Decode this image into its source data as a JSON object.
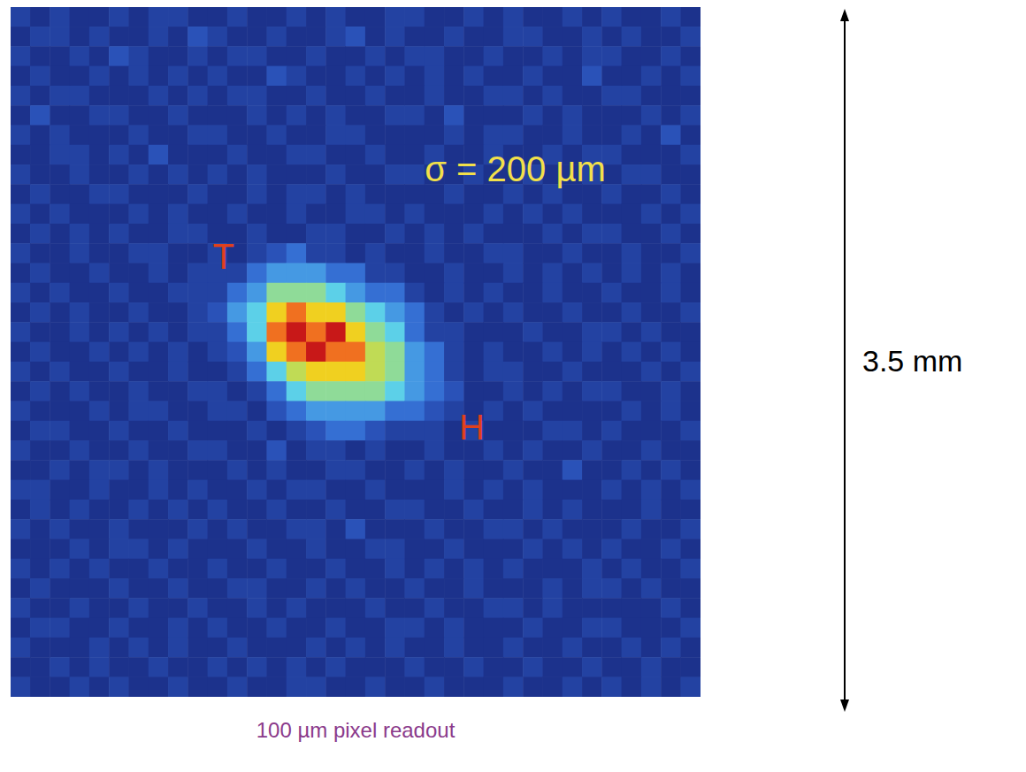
{
  "chart_data": {
    "type": "heatmap",
    "xlabel": "100 µm pixel readout",
    "extent_label": "3.5 mm",
    "tick_labels": false,
    "xlim": [
      0,
      35
    ],
    "ylim": [
      0,
      35
    ],
    "zlim": [
      0,
      10
    ],
    "annotations": [
      {
        "text": "σ = 200 µm",
        "x": 25.6,
        "y": 8.2,
        "color": "#f2e04a"
      },
      {
        "text": "T",
        "x": 10.8,
        "y": 12.65,
        "color": "#e0401c"
      },
      {
        "text": "H",
        "x": 23.4,
        "y": 21.3,
        "color": "#e0401c"
      }
    ],
    "cells": [
      [
        1,
        0,
        1,
        0,
        0,
        1,
        0,
        1,
        1,
        0,
        0,
        1,
        0,
        0,
        1,
        0,
        1,
        0,
        0,
        1,
        1,
        0,
        0,
        1,
        0,
        1,
        0,
        0,
        1,
        0,
        1,
        0,
        0,
        1,
        0
      ],
      [
        0,
        1,
        1,
        0,
        1,
        0,
        0,
        1,
        0,
        2,
        1,
        0,
        0,
        1,
        0,
        0,
        1,
        2,
        0,
        1,
        0,
        0,
        1,
        0,
        0,
        1,
        1,
        0,
        0,
        1,
        0,
        1,
        0,
        0,
        1
      ],
      [
        1,
        0,
        0,
        1,
        0,
        2,
        1,
        0,
        0,
        1,
        0,
        1,
        1,
        0,
        0,
        1,
        0,
        0,
        1,
        0,
        1,
        1,
        0,
        0,
        1,
        0,
        0,
        1,
        0,
        1,
        1,
        0,
        0,
        1,
        0
      ],
      [
        0,
        1,
        0,
        0,
        1,
        0,
        1,
        0,
        1,
        0,
        1,
        0,
        0,
        2,
        1,
        0,
        0,
        1,
        0,
        1,
        0,
        1,
        0,
        1,
        0,
        0,
        1,
        0,
        0,
        2,
        0,
        0,
        1,
        0,
        1
      ],
      [
        1,
        0,
        1,
        1,
        0,
        0,
        0,
        1,
        0,
        1,
        0,
        1,
        1,
        0,
        0,
        1,
        0,
        0,
        1,
        0,
        0,
        1,
        0,
        0,
        1,
        1,
        0,
        1,
        0,
        0,
        1,
        1,
        0,
        0,
        0
      ],
      [
        0,
        2,
        0,
        0,
        1,
        1,
        0,
        0,
        1,
        0,
        0,
        0,
        1,
        0,
        1,
        0,
        1,
        0,
        0,
        1,
        1,
        0,
        2,
        0,
        0,
        0,
        1,
        0,
        1,
        0,
        0,
        0,
        1,
        0,
        1
      ],
      [
        1,
        0,
        1,
        0,
        0,
        0,
        1,
        0,
        0,
        1,
        1,
        0,
        0,
        1,
        0,
        0,
        1,
        1,
        0,
        0,
        0,
        0,
        1,
        0,
        1,
        1,
        0,
        0,
        1,
        0,
        0,
        1,
        0,
        2,
        0
      ],
      [
        0,
        0,
        1,
        1,
        0,
        1,
        0,
        2,
        0,
        0,
        0,
        1,
        0,
        0,
        1,
        1,
        0,
        0,
        1,
        0,
        0,
        1,
        0,
        0,
        1,
        0,
        0,
        1,
        0,
        1,
        1,
        0,
        0,
        0,
        1
      ],
      [
        1,
        0,
        0,
        1,
        0,
        0,
        1,
        0,
        1,
        0,
        1,
        0,
        1,
        0,
        0,
        0,
        1,
        0,
        0,
        1,
        1,
        0,
        0,
        1,
        0,
        0,
        1,
        0,
        0,
        1,
        0,
        1,
        1,
        0,
        0
      ],
      [
        0,
        1,
        0,
        0,
        1,
        1,
        0,
        0,
        0,
        1,
        0,
        0,
        1,
        0,
        1,
        1,
        0,
        1,
        0,
        0,
        0,
        0,
        1,
        0,
        0,
        1,
        0,
        1,
        0,
        0,
        1,
        0,
        0,
        1,
        0
      ],
      [
        1,
        0,
        1,
        0,
        0,
        0,
        1,
        0,
        1,
        0,
        0,
        1,
        0,
        0,
        1,
        0,
        0,
        1,
        1,
        0,
        1,
        0,
        0,
        0,
        1,
        0,
        1,
        0,
        1,
        0,
        0,
        0,
        1,
        0,
        1
      ],
      [
        0,
        1,
        0,
        1,
        0,
        1,
        0,
        0,
        1,
        1,
        0,
        0,
        1,
        0,
        0,
        1,
        1,
        0,
        0,
        1,
        0,
        1,
        0,
        1,
        0,
        0,
        0,
        1,
        0,
        1,
        1,
        0,
        0,
        1,
        0
      ],
      [
        1,
        0,
        0,
        1,
        0,
        0,
        1,
        1,
        0,
        0,
        1,
        0,
        1,
        2,
        3,
        1,
        1,
        0,
        1,
        0,
        0,
        1,
        0,
        0,
        1,
        1,
        0,
        0,
        1,
        0,
        0,
        1,
        0,
        0,
        1
      ],
      [
        0,
        1,
        0,
        0,
        1,
        0,
        0,
        1,
        0,
        1,
        1,
        1,
        3,
        4,
        4,
        4,
        3,
        3,
        1,
        1,
        0,
        0,
        1,
        0,
        0,
        1,
        0,
        1,
        0,
        1,
        0,
        1,
        0,
        1,
        0
      ],
      [
        1,
        0,
        1,
        0,
        0,
        1,
        0,
        0,
        1,
        1,
        1,
        3,
        4,
        6,
        6,
        6,
        5,
        4,
        3,
        3,
        1,
        0,
        1,
        0,
        1,
        0,
        0,
        1,
        0,
        0,
        1,
        0,
        0,
        1,
        0
      ],
      [
        0,
        1,
        0,
        1,
        0,
        0,
        1,
        0,
        0,
        1,
        2,
        4,
        5,
        8,
        9,
        8,
        8,
        6,
        5,
        4,
        3,
        1,
        0,
        1,
        0,
        1,
        0,
        0,
        1,
        0,
        0,
        1,
        0,
        0,
        1
      ],
      [
        1,
        0,
        0,
        1,
        0,
        1,
        0,
        1,
        0,
        1,
        1,
        3,
        5,
        9,
        10,
        9,
        10,
        8,
        6,
        5,
        3,
        1,
        1,
        0,
        0,
        0,
        1,
        0,
        0,
        1,
        1,
        0,
        1,
        0,
        0
      ],
      [
        0,
        1,
        0,
        0,
        1,
        0,
        1,
        0,
        1,
        0,
        1,
        2,
        4,
        8,
        9,
        10,
        9,
        9,
        7,
        6,
        4,
        3,
        1,
        0,
        1,
        0,
        0,
        1,
        0,
        1,
        0,
        1,
        0,
        1,
        0
      ],
      [
        1,
        0,
        1,
        0,
        0,
        1,
        0,
        0,
        1,
        0,
        0,
        1,
        3,
        5,
        7,
        8,
        8,
        8,
        7,
        6,
        4,
        3,
        1,
        0,
        1,
        1,
        0,
        0,
        1,
        0,
        0,
        0,
        1,
        0,
        1
      ],
      [
        0,
        1,
        0,
        1,
        0,
        0,
        1,
        0,
        0,
        1,
        1,
        0,
        1,
        3,
        5,
        6,
        6,
        6,
        6,
        5,
        4,
        3,
        2,
        0,
        0,
        1,
        0,
        1,
        0,
        1,
        1,
        0,
        0,
        1,
        0
      ],
      [
        1,
        0,
        0,
        0,
        1,
        0,
        1,
        1,
        0,
        0,
        1,
        1,
        0,
        2,
        3,
        4,
        4,
        4,
        4,
        3,
        3,
        2,
        1,
        0,
        1,
        0,
        1,
        0,
        0,
        0,
        0,
        1,
        0,
        1,
        0
      ],
      [
        0,
        1,
        1,
        0,
        0,
        1,
        0,
        0,
        1,
        0,
        0,
        0,
        1,
        0,
        1,
        2,
        3,
        3,
        2,
        1,
        1,
        1,
        0,
        1,
        0,
        0,
        0,
        1,
        1,
        0,
        1,
        0,
        0,
        0,
        1
      ],
      [
        1,
        0,
        0,
        1,
        0,
        0,
        1,
        0,
        0,
        1,
        1,
        0,
        0,
        2,
        0,
        1,
        1,
        0,
        1,
        0,
        0,
        1,
        0,
        0,
        1,
        0,
        1,
        0,
        0,
        1,
        0,
        0,
        1,
        0,
        0
      ],
      [
        0,
        0,
        1,
        0,
        1,
        1,
        0,
        1,
        0,
        0,
        0,
        1,
        0,
        1,
        0,
        0,
        1,
        1,
        0,
        0,
        1,
        0,
        1,
        0,
        0,
        1,
        0,
        0,
        2,
        0,
        0,
        1,
        0,
        1,
        0
      ],
      [
        1,
        1,
        0,
        0,
        1,
        0,
        0,
        1,
        0,
        1,
        0,
        0,
        1,
        0,
        1,
        1,
        0,
        0,
        1,
        0,
        0,
        0,
        1,
        0,
        1,
        0,
        1,
        0,
        0,
        0,
        1,
        0,
        1,
        0,
        1
      ],
      [
        0,
        1,
        0,
        1,
        0,
        0,
        1,
        0,
        1,
        0,
        1,
        0,
        0,
        1,
        0,
        0,
        1,
        0,
        0,
        1,
        1,
        0,
        0,
        1,
        0,
        0,
        1,
        0,
        1,
        0,
        0,
        0,
        1,
        0,
        0
      ],
      [
        1,
        0,
        1,
        0,
        0,
        1,
        0,
        0,
        0,
        1,
        0,
        1,
        0,
        0,
        1,
        1,
        0,
        2,
        0,
        0,
        0,
        1,
        0,
        0,
        1,
        1,
        0,
        1,
        0,
        0,
        0,
        1,
        0,
        0,
        1
      ],
      [
        0,
        0,
        0,
        1,
        0,
        1,
        1,
        0,
        1,
        0,
        0,
        0,
        1,
        0,
        0,
        1,
        0,
        0,
        1,
        1,
        0,
        0,
        1,
        0,
        0,
        0,
        1,
        0,
        1,
        0,
        1,
        0,
        0,
        1,
        0
      ],
      [
        1,
        0,
        1,
        0,
        1,
        0,
        0,
        1,
        0,
        0,
        1,
        0,
        0,
        1,
        0,
        0,
        1,
        0,
        0,
        1,
        0,
        1,
        0,
        1,
        0,
        1,
        0,
        0,
        0,
        1,
        0,
        1,
        0,
        0,
        1
      ],
      [
        0,
        1,
        0,
        0,
        0,
        1,
        0,
        0,
        1,
        0,
        0,
        1,
        1,
        0,
        0,
        1,
        0,
        1,
        0,
        0,
        1,
        0,
        0,
        1,
        0,
        0,
        0,
        1,
        0,
        1,
        1,
        0,
        1,
        0,
        0
      ],
      [
        1,
        0,
        0,
        1,
        0,
        0,
        1,
        0,
        0,
        1,
        0,
        0,
        1,
        0,
        1,
        0,
        0,
        0,
        1,
        0,
        0,
        1,
        0,
        0,
        1,
        1,
        0,
        1,
        0,
        0,
        0,
        0,
        0,
        1,
        0
      ],
      [
        0,
        1,
        1,
        0,
        0,
        1,
        0,
        0,
        1,
        0,
        1,
        0,
        0,
        1,
        0,
        0,
        1,
        0,
        0,
        1,
        1,
        0,
        1,
        0,
        0,
        0,
        1,
        0,
        0,
        1,
        1,
        0,
        0,
        0,
        1
      ],
      [
        1,
        0,
        0,
        0,
        1,
        0,
        1,
        0,
        1,
        0,
        0,
        1,
        0,
        0,
        0,
        1,
        0,
        1,
        0,
        1,
        0,
        0,
        1,
        0,
        0,
        1,
        0,
        0,
        1,
        0,
        0,
        1,
        0,
        1,
        0
      ],
      [
        0,
        0,
        1,
        0,
        1,
        0,
        0,
        1,
        0,
        0,
        1,
        0,
        1,
        0,
        1,
        0,
        1,
        0,
        0,
        0,
        1,
        0,
        0,
        1,
        0,
        0,
        1,
        0,
        0,
        1,
        0,
        0,
        1,
        0,
        0
      ],
      [
        1,
        0,
        0,
        1,
        0,
        1,
        0,
        0,
        1,
        0,
        0,
        1,
        0,
        0,
        1,
        1,
        0,
        0,
        1,
        0,
        0,
        1,
        0,
        0,
        0,
        1,
        0,
        0,
        1,
        0,
        1,
        0,
        1,
        0,
        1
      ]
    ]
  }
}
